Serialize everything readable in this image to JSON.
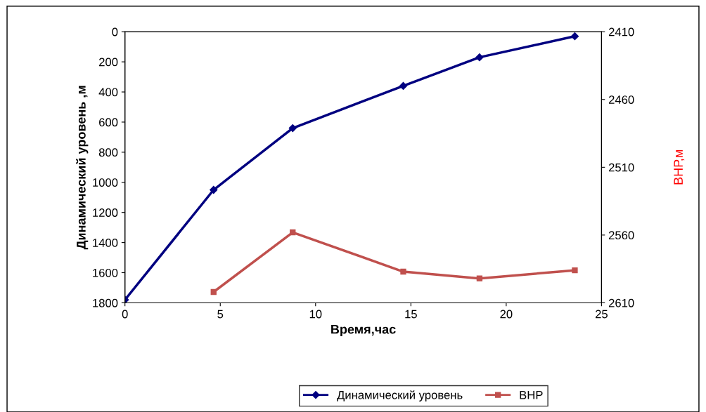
{
  "chart_data": {
    "type": "line",
    "xlabel": "Время,час",
    "ylabel": "Динамический уровень ,м",
    "y2label": "ВНР,м",
    "xlim": [
      0,
      25
    ],
    "xticks": [
      0,
      5,
      10,
      15,
      20,
      25
    ],
    "ylim": [
      1800,
      0
    ],
    "yticks": [
      0,
      200,
      400,
      600,
      800,
      1000,
      1200,
      1400,
      1600,
      1800
    ],
    "y2lim": [
      2610,
      2410
    ],
    "y2ticks": [
      2410,
      2460,
      2510,
      2560,
      2610
    ],
    "grid": false,
    "legend": "bottom",
    "series": [
      {
        "name": "Динамический уровень",
        "color": "#000080",
        "marker": "diamond",
        "x": [
          0,
          4.65,
          8.8,
          14.6,
          18.6,
          23.6
        ],
        "values": [
          1780,
          1050,
          640,
          360,
          170,
          30
        ]
      },
      {
        "name": "ВНР",
        "color": "#c0504d",
        "marker": "square",
        "axis": "y2",
        "x": [
          4.65,
          8.8,
          14.6,
          18.6,
          23.6
        ],
        "values": [
          2602,
          2558,
          2587,
          2592,
          2586
        ]
      }
    ]
  }
}
